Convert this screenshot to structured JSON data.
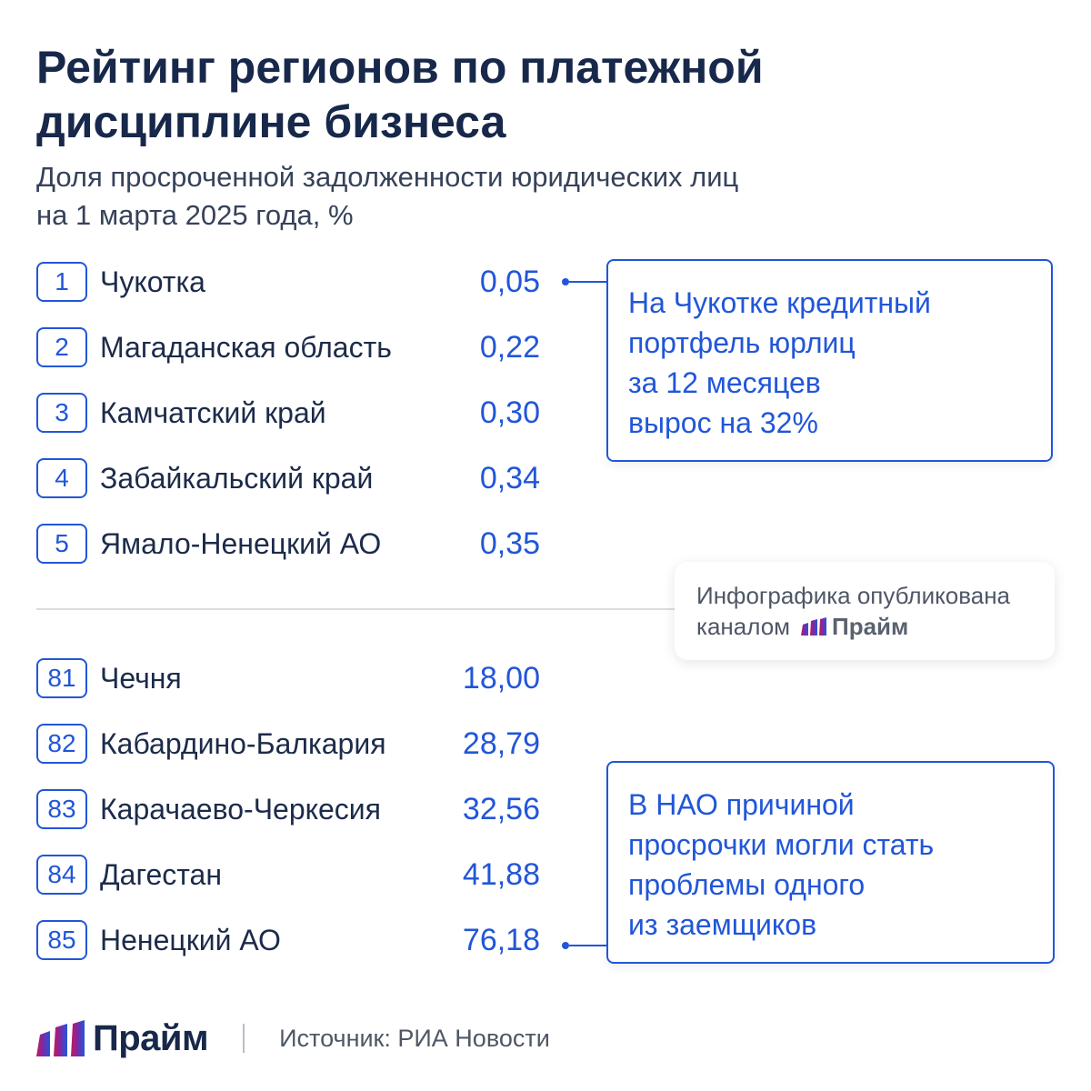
{
  "chart_data": {
    "type": "table",
    "title_lines": [
      "Рейтинг регионов по платежной",
      "дисциплине бизнеса"
    ],
    "subtitle_lines": [
      "Доля просроченной задолженности юридических лиц",
      "на 1 марта 2025 года, %"
    ],
    "top": [
      {
        "rank": "1",
        "region": "Чукотка",
        "value": "0,05"
      },
      {
        "rank": "2",
        "region": "Магаданская область",
        "value": "0,22"
      },
      {
        "rank": "3",
        "region": "Камчатский край",
        "value": "0,30"
      },
      {
        "rank": "4",
        "region": "Забайкальский край",
        "value": "0,34"
      },
      {
        "rank": "5",
        "region": "Ямало-Ненецкий АО",
        "value": "0,35"
      }
    ],
    "bottom": [
      {
        "rank": "81",
        "region": "Чечня",
        "value": "18,00"
      },
      {
        "rank": "82",
        "region": "Кабардино-Балкария",
        "value": "28,79"
      },
      {
        "rank": "83",
        "region": "Карачаево-Черкесия",
        "value": "32,56"
      },
      {
        "rank": "84",
        "region": "Дагестан",
        "value": "41,88"
      },
      {
        "rank": "85",
        "region": "Ненецкий АО",
        "value": "76,18"
      }
    ],
    "annotations": [
      {
        "target_rank": "1",
        "lines": [
          "На Чукотке кредитный",
          "портфель юрлиц",
          "за 12 месяцев",
          "вырос на 32%"
        ]
      },
      {
        "target_rank": "85",
        "lines": [
          "В НАО причиной",
          "просрочки могли стать",
          "проблемы одного",
          "из заемщиков"
        ]
      }
    ]
  },
  "publication_note": {
    "line1": "Инфографика опубликована",
    "line2": "каналом",
    "brand": "Прайм"
  },
  "footer": {
    "brand": "Прайм",
    "source": "Источник: РИА Новости"
  },
  "colors": {
    "accent": "#2156d9",
    "title": "#17284a",
    "logo_gradient": [
      "#c2195a",
      "#7a2aa8",
      "#2156d9"
    ]
  },
  "icons": {
    "brand_logo": "prime-bars-logo-icon"
  }
}
